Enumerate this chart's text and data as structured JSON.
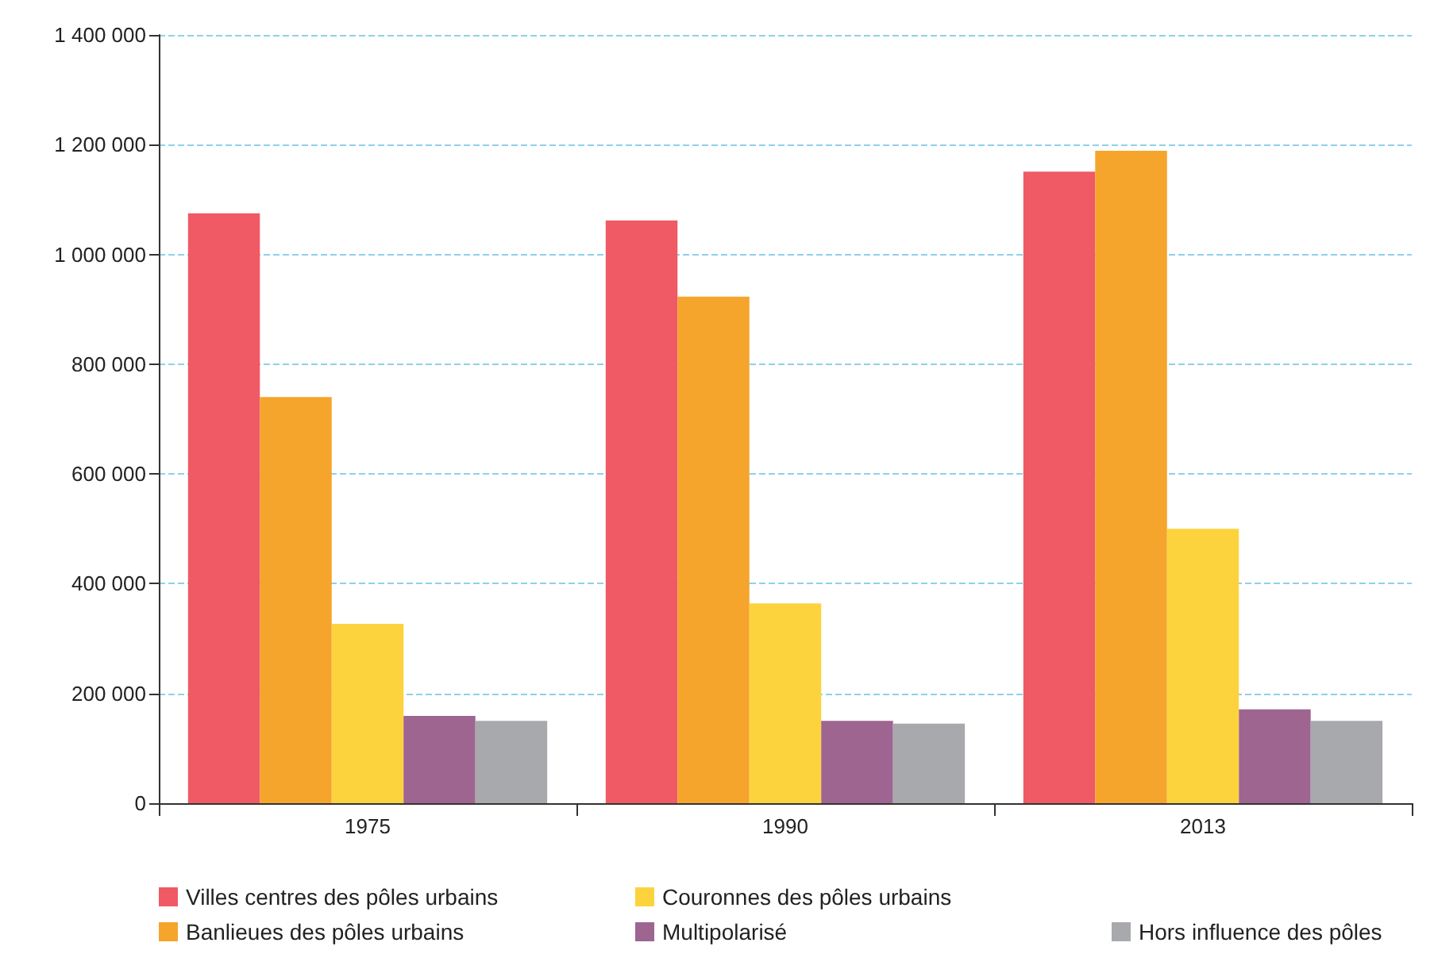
{
  "chart_data": {
    "type": "bar",
    "categories": [
      "1975",
      "1990",
      "2013"
    ],
    "series": [
      {
        "name": "Villes centres des pôles urbains",
        "color": "#ef5a64",
        "values": [
          1075000,
          1062000,
          1151000
        ]
      },
      {
        "name": "Banlieues des pôles urbains",
        "color": "#f5a42c",
        "values": [
          740000,
          923000,
          1189000
        ]
      },
      {
        "name": "Couronnes des pôles urbains",
        "color": "#fdd33d",
        "values": [
          327000,
          364000,
          500000
        ]
      },
      {
        "name": "Multipolarisé",
        "color": "#9e6591",
        "values": [
          159000,
          150000,
          171000
        ]
      },
      {
        "name": "Hors influence des pôles",
        "color": "#a7a9ac",
        "values": [
          150000,
          145000,
          150000
        ]
      }
    ],
    "ylim": [
      0,
      1400000
    ],
    "yticks": [
      {
        "value": 0,
        "label": "0"
      },
      {
        "value": 200000,
        "label": "200 000"
      },
      {
        "value": 400000,
        "label": "400 000"
      },
      {
        "value": 600000,
        "label": "600 000"
      },
      {
        "value": 800000,
        "label": "800 000"
      },
      {
        "value": 1000000,
        "label": "1 000 000"
      },
      {
        "value": 1200000,
        "label": "1 200 000"
      },
      {
        "value": 1400000,
        "label": "1 400 000"
      }
    ],
    "grid": "y",
    "legend": "bottom"
  }
}
